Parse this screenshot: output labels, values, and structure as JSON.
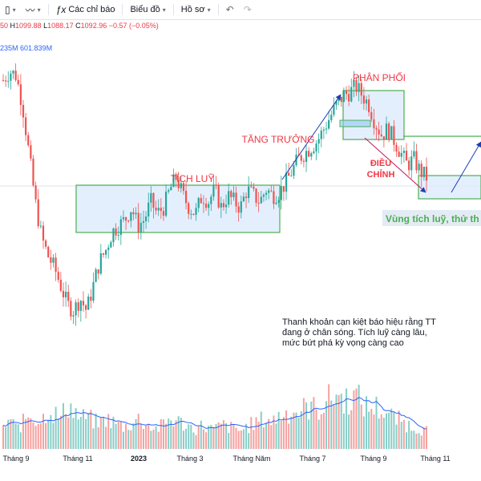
{
  "toolbar": {
    "indicators_label": "Các chỉ báo",
    "chart_label": "Biểu đồ",
    "profile_label": "Hồ sơ"
  },
  "ohlc": {
    "open_tail": "50",
    "high_label": "H",
    "high": "1099.88",
    "low_label": "L",
    "low": "1088.17",
    "close_label": "C",
    "close": "1092.96",
    "change": "−0.57 (−0.05%)"
  },
  "volume_info": {
    "ma_tail": "235M",
    "volume": "601.839M"
  },
  "colors": {
    "up": "#26a69a",
    "down": "#ef5350",
    "box_border": "#4caf50",
    "box_fill": "#dbeafe",
    "annotation_red": "#f23645",
    "arrow_blue": "#1e40af",
    "vol_ma": "#2962ff"
  },
  "annotations": {
    "accumulation": "TÍCH LUỸ",
    "growth": "TĂNG TRƯỞNG",
    "distribution": "PHÂN PHỐI",
    "correction_1": "ĐIỀU",
    "correction_2": "CHỈNH",
    "zone_note": "Vùng tích luỹ, thử th",
    "liquidity_note_1": "Thanh khoản cạn kiệt báo hiệu rằng TT",
    "liquidity_note_2": "đang ở chân sóng. Tích luỹ càng lâu,",
    "liquidity_note_3": "mức bứt phá kỳ vọng càng cao"
  },
  "chart_data": {
    "type": "candlestick",
    "x_axis_labels": [
      "Tháng 9",
      "Tháng 11",
      "2023",
      "Tháng 3",
      "Tháng Năm",
      "Tháng 7",
      "Tháng 9",
      "Tháng 11"
    ],
    "price_path": [
      1240,
      1255,
      1248,
      1200,
      1120,
      1040,
      980,
      950,
      930,
      900,
      870,
      860,
      880,
      860,
      900,
      940,
      960,
      990,
      1000,
      1010,
      1030,
      1000,
      1010,
      1040,
      1020,
      1030,
      1060,
      1080,
      1050,
      1030,
      1020,
      1050,
      1040,
      1060,
      1030,
      1050,
      1040,
      1030,
      1060,
      1050,
      1040,
      1060,
      1050,
      1055,
      1070,
      1090,
      1110,
      1120,
      1130,
      1140,
      1160,
      1180,
      1200,
      1215,
      1220,
      1230,
      1215,
      1200,
      1170,
      1150,
      1160,
      1140,
      1120,
      1100,
      1110,
      1090,
      1080
    ],
    "volume_relative": [
      0.2,
      0.3,
      0.2,
      0.25,
      0.35,
      0.3,
      0.28,
      0.4,
      0.35,
      0.3,
      0.45,
      0.38,
      0.3,
      0.32,
      0.28,
      0.25,
      0.3,
      0.27,
      0.24,
      0.22,
      0.25,
      0.3,
      0.26,
      0.22,
      0.2,
      0.24,
      0.3,
      0.28,
      0.25,
      0.22,
      0.2,
      0.23,
      0.21,
      0.19,
      0.24,
      0.22,
      0.2,
      0.18,
      0.22,
      0.25,
      0.28,
      0.3,
      0.27,
      0.33,
      0.35,
      0.38,
      0.36,
      0.4,
      0.42,
      0.38,
      0.45,
      0.5,
      0.55,
      0.48,
      0.5,
      0.52,
      0.45,
      0.4,
      0.42,
      0.38,
      0.35,
      0.3,
      0.28,
      0.24,
      0.22,
      0.2,
      0.18
    ]
  }
}
